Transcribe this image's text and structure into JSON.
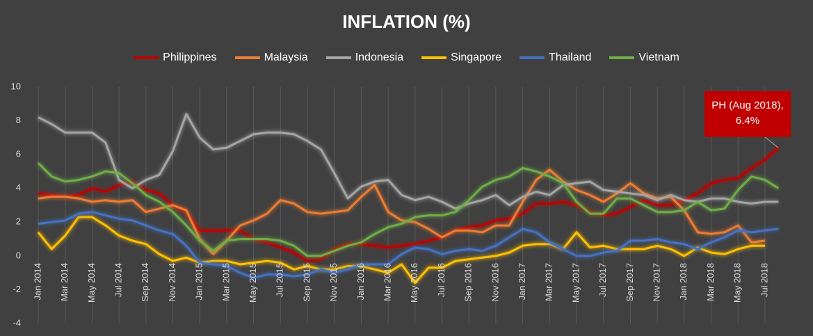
{
  "chart_data": {
    "type": "line",
    "title": "INFLATION (%)",
    "categories": [
      "Jan 2014",
      null,
      "Mar 2014",
      null,
      "May 2014",
      null,
      "Jul 2014",
      null,
      "Sep 2014",
      null,
      "Nov 2014",
      null,
      "Jan 2015",
      null,
      "Mar 2015",
      null,
      "May 2015",
      null,
      "Jul 2015",
      null,
      "Sep 2015",
      null,
      "Nov 2015",
      null,
      "Jan 2016",
      null,
      "Mar 2016",
      null,
      "May 2016",
      null,
      "Jul 2016",
      null,
      "Sep 2016",
      null,
      "Nov 2016",
      null,
      "Jan 2017",
      null,
      "Mar 2017",
      null,
      "May 2017",
      null,
      "Jul 2017",
      null,
      "Sep 2017",
      null,
      "Nov 2017",
      null,
      "Jan 2018",
      null,
      "Mar 2018",
      null,
      "May 2018",
      null,
      "Jul 2018",
      null
    ],
    "series": [
      {
        "name": "Philippines",
        "color": "#c00000",
        "values": [
          3.7,
          3.6,
          3.5,
          3.6,
          4.0,
          3.8,
          4.2,
          4.4,
          3.9,
          3.7,
          3.0,
          2.6,
          1.5,
          1.5,
          1.5,
          1.5,
          1.0,
          0.8,
          0.5,
          0.2,
          -0.3,
          -0.2,
          0.4,
          0.7,
          0.7,
          0.6,
          0.5,
          0.6,
          0.7,
          0.9,
          1.1,
          1.5,
          1.7,
          1.8,
          2.1,
          2.2,
          2.5,
          3.1,
          3.1,
          3.2,
          3.0,
          2.6,
          2.4,
          2.5,
          2.9,
          3.3,
          3.0,
          3.0,
          3.3,
          3.7,
          4.3,
          4.5,
          4.6,
          5.2,
          5.7,
          6.4
        ]
      },
      {
        "name": "Malaysia",
        "color": "#ed7d31",
        "values": [
          3.4,
          3.5,
          3.5,
          3.4,
          3.2,
          3.3,
          3.2,
          3.3,
          2.6,
          2.8,
          3.0,
          2.7,
          1.0,
          0.1,
          0.9,
          1.8,
          2.1,
          2.5,
          3.3,
          3.1,
          2.6,
          2.5,
          2.6,
          2.7,
          3.5,
          4.2,
          2.6,
          2.1,
          2.0,
          1.6,
          1.1,
          1.5,
          1.5,
          1.4,
          1.8,
          1.8,
          3.2,
          4.5,
          5.1,
          4.4,
          3.9,
          3.6,
          3.2,
          3.7,
          4.3,
          3.7,
          3.4,
          3.5,
          2.7,
          1.4,
          1.3,
          1.4,
          1.8,
          0.8,
          0.9,
          null
        ]
      },
      {
        "name": "Indonesia",
        "color": "#a5a5a5",
        "values": [
          8.2,
          7.8,
          7.3,
          7.3,
          7.3,
          6.7,
          4.5,
          4.0,
          4.5,
          4.8,
          6.2,
          8.4,
          7.0,
          6.3,
          6.4,
          6.8,
          7.2,
          7.3,
          7.3,
          7.2,
          6.8,
          6.3,
          4.9,
          3.4,
          4.1,
          4.4,
          4.5,
          3.6,
          3.3,
          3.5,
          3.2,
          2.8,
          3.1,
          3.3,
          3.6,
          3.0,
          3.5,
          3.8,
          3.6,
          4.2,
          4.3,
          4.4,
          3.9,
          3.8,
          3.7,
          3.6,
          3.3,
          3.6,
          3.3,
          3.2,
          3.4,
          3.4,
          3.2,
          3.1,
          3.2,
          3.2
        ]
      },
      {
        "name": "Singapore",
        "color": "#ffc000",
        "values": [
          1.4,
          0.4,
          1.2,
          2.3,
          2.3,
          1.8,
          1.2,
          0.9,
          0.7,
          0.1,
          -0.3,
          -0.1,
          -0.4,
          -0.3,
          -0.3,
          -0.5,
          -0.4,
          -0.3,
          -0.4,
          -0.8,
          -0.6,
          -0.8,
          -0.8,
          -0.6,
          -0.6,
          -0.8,
          -1.0,
          -0.5,
          -1.6,
          -0.7,
          -0.7,
          -0.3,
          -0.2,
          -0.1,
          0.0,
          0.2,
          0.6,
          0.7,
          0.7,
          0.4,
          1.4,
          0.5,
          0.6,
          0.4,
          0.4,
          0.4,
          0.6,
          0.4,
          0.0,
          0.5,
          0.2,
          0.1,
          0.4,
          0.6,
          0.6,
          null
        ]
      },
      {
        "name": "Thailand",
        "color": "#4472c4",
        "values": [
          1.9,
          2.0,
          2.1,
          2.5,
          2.6,
          2.4,
          2.2,
          2.1,
          1.8,
          1.5,
          1.3,
          0.6,
          -0.4,
          -0.5,
          -0.6,
          -1.0,
          -1.3,
          -1.1,
          -1.1,
          -1.2,
          -1.1,
          -0.8,
          -1.0,
          -0.8,
          -0.5,
          -0.5,
          -0.5,
          0.1,
          0.5,
          0.4,
          0.1,
          0.3,
          0.4,
          0.3,
          0.6,
          1.1,
          1.6,
          1.4,
          0.8,
          0.4,
          0.0,
          0.0,
          0.2,
          0.3,
          0.9,
          0.9,
          1.0,
          0.8,
          0.7,
          0.4,
          0.8,
          1.1,
          1.5,
          1.4,
          1.5,
          1.6
        ]
      },
      {
        "name": "Vietnam",
        "color": "#70ad47",
        "values": [
          5.5,
          4.7,
          4.4,
          4.5,
          4.7,
          5.0,
          4.9,
          4.3,
          3.6,
          3.2,
          2.6,
          1.8,
          0.9,
          0.3,
          0.9,
          1.0,
          1.0,
          1.0,
          0.9,
          0.6,
          0.0,
          0.0,
          0.3,
          0.6,
          0.8,
          1.3,
          1.7,
          1.9,
          2.3,
          2.4,
          2.4,
          2.6,
          3.3,
          4.1,
          4.5,
          4.7,
          5.2,
          5.0,
          4.7,
          4.3,
          3.2,
          2.5,
          2.5,
          3.4,
          3.4,
          3.0,
          2.6,
          2.6,
          2.7,
          3.2,
          2.7,
          2.8,
          3.9,
          4.7,
          4.5,
          4.0
        ]
      }
    ],
    "ylim": [
      -4,
      10
    ],
    "yticks": [
      -4,
      -2,
      0,
      2,
      4,
      6,
      8,
      10
    ],
    "grid": true,
    "legend": "top",
    "annotation": {
      "text": "PH (Aug 2018), 6.4%",
      "color": "#c00000"
    }
  }
}
